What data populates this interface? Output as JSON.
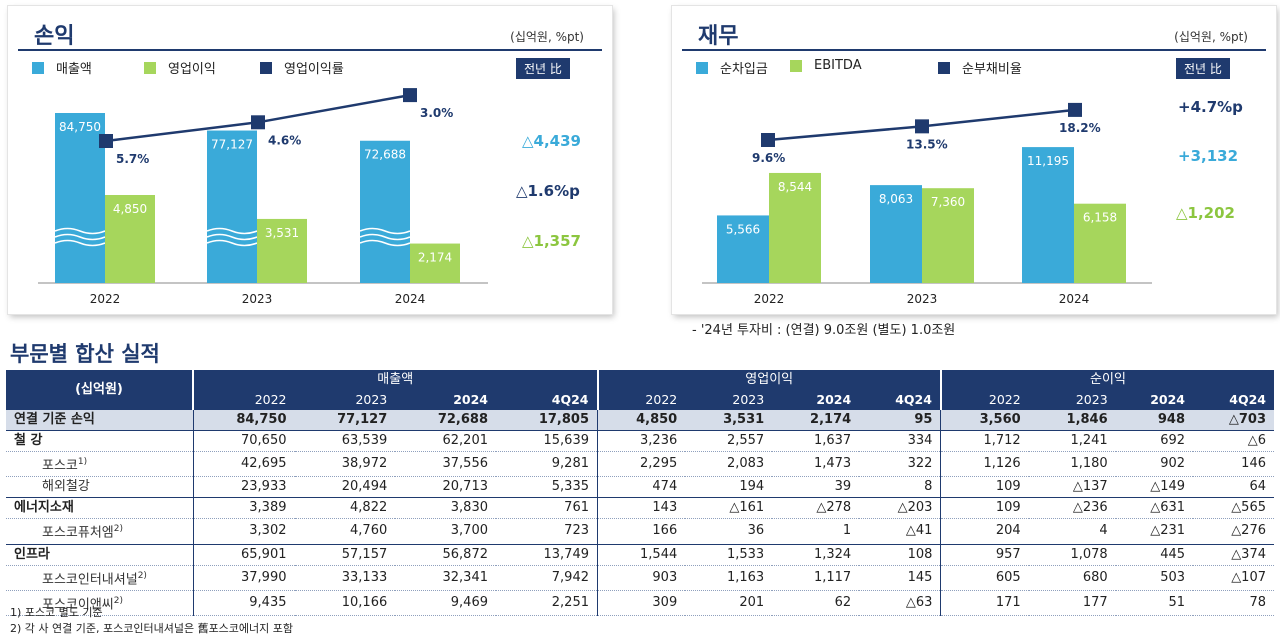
{
  "left_panel": {
    "title": "손익",
    "unit": "(십억원, %pt)",
    "badge": "전년 比",
    "legend": [
      {
        "label": "매출액",
        "color": "#3aaad9"
      },
      {
        "label": "영업이익",
        "color": "#a6d65c"
      },
      {
        "label": "영업이익률",
        "color": "#1f3a6e"
      }
    ],
    "side_notes": [
      "△4,439",
      "△1.6%p",
      "△1,357"
    ]
  },
  "right_panel": {
    "title": "재무",
    "unit": "(십억원, %pt)",
    "badge": "전년 比",
    "legend": [
      {
        "label": "순차입금",
        "color": "#3aaad9"
      },
      {
        "label": "EBITDA",
        "color": "#a6d65c"
      },
      {
        "label": "순부채비율",
        "color": "#1f3a6e"
      }
    ],
    "side_notes": [
      "+4.7%p",
      "+3,132",
      "△1,202"
    ]
  },
  "chart_data": [
    {
      "type": "bar",
      "categories": [
        "2022",
        "2023",
        "2024"
      ],
      "series": [
        {
          "name": "매출액",
          "values": [
            84750,
            77127,
            72688
          ],
          "labels": [
            "84,750",
            "77,127",
            "72,688"
          ]
        },
        {
          "name": "영업이익",
          "values": [
            4850,
            3531,
            2174
          ],
          "labels": [
            "4,850",
            "3,531",
            "2,174"
          ]
        },
        {
          "name": "영업이익률",
          "values": [
            5.7,
            4.6,
            3.0
          ],
          "labels": [
            "5.7%",
            "4.6%",
            "3.0%"
          ]
        }
      ],
      "axis_break": true
    },
    {
      "type": "bar",
      "categories": [
        "2022",
        "2023",
        "2024"
      ],
      "series": [
        {
          "name": "순차입금",
          "values": [
            5566,
            8063,
            11195
          ],
          "labels": [
            "5,566",
            "8,063",
            "11,195"
          ]
        },
        {
          "name": "EBITDA",
          "values": [
            8544,
            7360,
            6158
          ],
          "labels": [
            "8,544",
            "7,360",
            "6,158"
          ]
        },
        {
          "name": "순부채비율",
          "values": [
            9.6,
            13.5,
            18.2
          ],
          "labels": [
            "9.6%",
            "13.5%",
            "18.2%"
          ]
        }
      ]
    }
  ],
  "invest_note": "- '24년 투자비 : (연결) 9.0조원  (별도) 1.0조원",
  "section_title": "부문별 합산 실적",
  "table": {
    "corner": "(십억원)",
    "groups": [
      "매출액",
      "영업이익",
      "순이익"
    ],
    "years": [
      "2022",
      "2023",
      "2024",
      "4Q24"
    ],
    "rows": [
      {
        "label": "연결 기준 손익",
        "kind": "consol",
        "values": [
          "84,750",
          "77,127",
          "72,688",
          "17,805",
          "4,850",
          "3,531",
          "2,174",
          "95",
          "3,560",
          "1,846",
          "948",
          "△703"
        ]
      },
      {
        "label": "철 강",
        "kind": "major",
        "values": [
          "70,650",
          "63,539",
          "62,201",
          "15,639",
          "3,236",
          "2,557",
          "1,637",
          "334",
          "1,712",
          "1,241",
          "692",
          "△6"
        ]
      },
      {
        "label": "포스코",
        "sup": "1)",
        "kind": "sub",
        "values": [
          "42,695",
          "38,972",
          "37,556",
          "9,281",
          "2,295",
          "2,083",
          "1,473",
          "322",
          "1,126",
          "1,180",
          "902",
          "146"
        ]
      },
      {
        "label": "해외철강",
        "kind": "sub",
        "values": [
          "23,933",
          "20,494",
          "20,713",
          "5,335",
          "474",
          "194",
          "39",
          "8",
          "109",
          "△137",
          "△149",
          "64"
        ]
      },
      {
        "label": "에너지소재",
        "kind": "major",
        "values": [
          "3,389",
          "4,822",
          "3,830",
          "761",
          "143",
          "△161",
          "△278",
          "△203",
          "109",
          "△236",
          "△631",
          "△565"
        ]
      },
      {
        "label": "포스코퓨처엠",
        "sup": "2)",
        "kind": "sub",
        "values": [
          "3,302",
          "4,760",
          "3,700",
          "723",
          "166",
          "36",
          "1",
          "△41",
          "204",
          "4",
          "△231",
          "△276"
        ]
      },
      {
        "label": "인프라",
        "kind": "major",
        "values": [
          "65,901",
          "57,157",
          "56,872",
          "13,749",
          "1,544",
          "1,533",
          "1,324",
          "108",
          "957",
          "1,078",
          "445",
          "△374"
        ]
      },
      {
        "label": "포스코인터내셔널",
        "sup": "2)",
        "kind": "sub",
        "values": [
          "37,990",
          "33,133",
          "32,341",
          "7,942",
          "903",
          "1,163",
          "1,117",
          "145",
          "605",
          "680",
          "503",
          "△107"
        ]
      },
      {
        "label": "포스코이앤씨",
        "sup": "2)",
        "kind": "sub",
        "values": [
          "9,435",
          "10,166",
          "9,469",
          "2,251",
          "309",
          "201",
          "62",
          "△63",
          "171",
          "177",
          "51",
          "78"
        ]
      }
    ]
  },
  "footnotes": [
    "1) 포스코 별도 기준",
    "2) 각 사 연결 기준, 포스코인터내셔널은 舊포스코에너지 포함"
  ]
}
